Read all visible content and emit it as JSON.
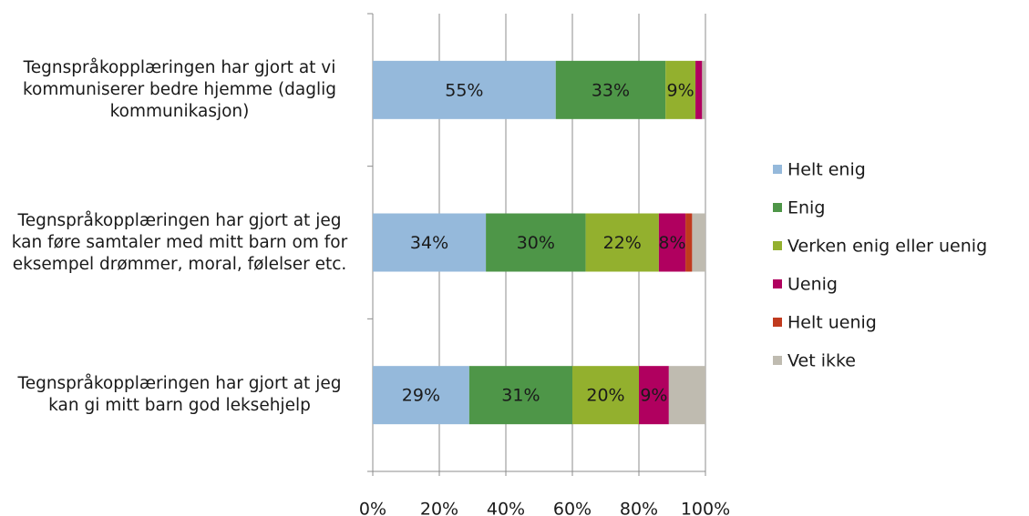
{
  "chart_data": {
    "type": "stacked_barh",
    "categories": [
      "Tegnspråkopplæringen  har gjort at vi kommuniserer bedre hjemme (daglig kommunikasjon)",
      "Tegnspråkopplæringen har gjort at jeg kan føre samtaler med mitt barn om for eksempel drømmer, moral, følelser etc.",
      "Tegnspråkopplæringen har gjort at jeg kan gi mitt barn god leksehjelp"
    ],
    "series": [
      {
        "name": "Helt enig",
        "color": "#95b9db",
        "values": [
          55,
          34,
          29
        ],
        "value_labels": [
          "55%",
          "34%",
          "29%"
        ]
      },
      {
        "name": "Enig",
        "color": "#4e9648",
        "values": [
          33,
          30,
          31
        ],
        "value_labels": [
          "33%",
          "30%",
          "31%"
        ]
      },
      {
        "name": "Verken enig eller uenig",
        "color": "#93b02e",
        "values": [
          9,
          22,
          20
        ],
        "value_labels": [
          "9%",
          "22%",
          "20%"
        ]
      },
      {
        "name": "Uenig",
        "color": "#b0005f",
        "values": [
          2,
          8,
          9
        ],
        "value_labels": [
          null,
          "8%",
          "9%"
        ]
      },
      {
        "name": "Helt uenig",
        "color": "#c03a1e",
        "values": [
          0,
          2,
          0
        ]
      },
      {
        "name": "Vet ikke",
        "color": "#bfbbb0",
        "values": [
          1,
          4,
          11
        ]
      }
    ],
    "xlim": [
      0,
      100
    ],
    "xticks": [
      {
        "value": 0,
        "label": "0%"
      },
      {
        "value": 20,
        "label": "20%"
      },
      {
        "value": 40,
        "label": "40%"
      },
      {
        "value": 60,
        "label": "60%"
      },
      {
        "value": 80,
        "label": "80%"
      },
      {
        "value": 100,
        "label": "100%"
      }
    ],
    "grid": true,
    "legend": "right"
  }
}
